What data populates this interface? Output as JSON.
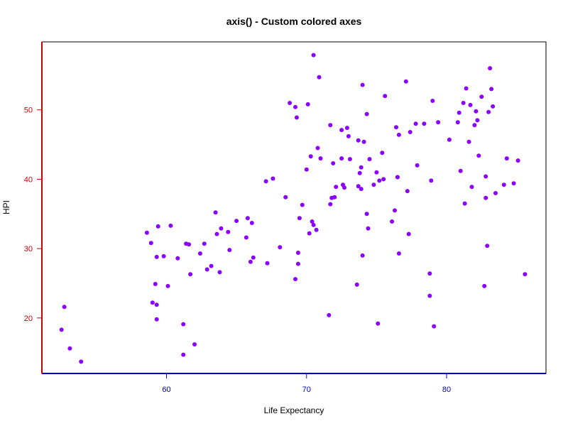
{
  "chart_data": {
    "type": "scatter",
    "title": "axis() - Custom colored axes",
    "xlabel": "Life Expectancy",
    "ylabel": "HPI",
    "xlim": [
      51.1,
      87.1
    ],
    "ylim": [
      12.0,
      59.8
    ],
    "x_ticks": [
      60,
      70,
      80
    ],
    "y_ticks": [
      20,
      30,
      40,
      50
    ],
    "x_tick_labels": [
      "60",
      "70",
      "80"
    ],
    "y_tick_labels": [
      "20",
      "30",
      "40",
      "50"
    ],
    "grid": false,
    "colors": {
      "points": "#8b00ff",
      "x_axis": "#0000cd",
      "y_axis": "#cc0000",
      "box": "#000000"
    },
    "x": [
      52.5,
      52.7,
      53.1,
      53.9,
      58.6,
      58.9,
      59.0,
      59.2,
      59.3,
      59.3,
      59.3,
      59.4,
      59.8,
      60.1,
      60.3,
      60.8,
      61.2,
      61.2,
      61.4,
      61.6,
      61.7,
      62.0,
      62.4,
      62.7,
      62.9,
      63.2,
      63.5,
      63.6,
      63.8,
      63.9,
      64.4,
      64.5,
      65.0,
      65.7,
      65.8,
      66.0,
      66.1,
      66.2,
      67.1,
      67.2,
      67.6,
      68.1,
      68.5,
      68.8,
      69.2,
      69.2,
      69.3,
      69.4,
      69.4,
      69.5,
      69.7,
      70.0,
      70.1,
      70.2,
      70.3,
      70.4,
      70.5,
      70.5,
      70.7,
      70.8,
      70.9,
      71.0,
      71.6,
      71.7,
      71.7,
      71.8,
      71.9,
      72.0,
      72.1,
      72.5,
      72.5,
      72.6,
      72.7,
      72.9,
      73.0,
      73.1,
      73.6,
      73.7,
      73.7,
      73.8,
      73.9,
      73.9,
      74.0,
      74.0,
      74.1,
      74.3,
      74.3,
      74.4,
      74.5,
      74.8,
      75.0,
      75.1,
      75.2,
      75.4,
      75.5,
      75.6,
      76.1,
      76.3,
      76.4,
      76.5,
      76.5,
      76.6,
      76.6,
      77.1,
      77.2,
      77.3,
      77.4,
      77.8,
      77.9,
      78.4,
      78.8,
      78.8,
      78.9,
      79.0,
      79.1,
      79.4,
      80.2,
      80.8,
      80.9,
      81.0,
      81.2,
      81.3,
      81.4,
      81.6,
      81.7,
      81.8,
      82.0,
      82.1,
      82.2,
      82.3,
      82.5,
      82.7,
      82.8,
      82.8,
      82.9,
      83.0,
      83.1,
      83.2,
      83.3,
      83.5,
      84.1,
      84.3,
      84.8,
      85.1,
      85.6
    ],
    "y": [
      18.3,
      21.6,
      15.6,
      13.7,
      32.3,
      30.8,
      22.2,
      24.9,
      19.8,
      28.8,
      21.9,
      33.2,
      28.9,
      24.6,
      33.3,
      28.6,
      19.1,
      14.7,
      30.7,
      30.6,
      26.3,
      16.2,
      29.3,
      30.7,
      27.0,
      27.5,
      35.2,
      32.1,
      26.6,
      32.9,
      32.4,
      29.8,
      34.0,
      31.6,
      34.4,
      28.1,
      33.7,
      28.7,
      39.7,
      27.9,
      40.1,
      30.2,
      37.4,
      51.0,
      50.4,
      25.6,
      48.9,
      29.4,
      27.8,
      34.4,
      36.3,
      41.4,
      50.8,
      32.2,
      43.3,
      33.9,
      33.4,
      57.9,
      32.7,
      44.5,
      54.7,
      43.0,
      20.4,
      36.4,
      47.8,
      37.3,
      42.3,
      37.4,
      38.9,
      43.0,
      47.1,
      39.2,
      38.8,
      47.4,
      46.2,
      42.9,
      24.8,
      39.0,
      45.6,
      40.9,
      38.6,
      41.7,
      53.6,
      29.0,
      45.4,
      49.4,
      35.0,
      32.9,
      42.9,
      39.2,
      41.0,
      19.2,
      39.8,
      43.8,
      40.0,
      52.0,
      33.9,
      35.5,
      47.5,
      40.3,
      40.3,
      46.4,
      29.3,
      54.1,
      38.3,
      32.1,
      46.8,
      48.0,
      42.0,
      48.0,
      23.2,
      26.4,
      39.8,
      51.3,
      18.8,
      48.2,
      45.7,
      48.2,
      49.6,
      41.2,
      51.0,
      36.5,
      53.1,
      45.4,
      50.7,
      38.9,
      47.8,
      49.8,
      48.5,
      43.4,
      51.9,
      24.6,
      37.3,
      40.4,
      30.4,
      49.7,
      56.0,
      53.0,
      50.5,
      38.0,
      39.2,
      43.0,
      39.4,
      42.7,
      26.3
    ]
  }
}
